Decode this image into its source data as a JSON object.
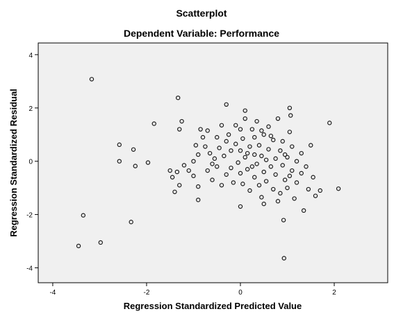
{
  "chart_data": {
    "type": "scatter",
    "title": "Scatterplot",
    "subtitle": "Dependent Variable: Performance",
    "x_label": "Regression Standardized Predicted Value",
    "y_label": "Regression Standardized Residual",
    "color": "#1a1a1a",
    "background": "#f0f0f0",
    "grid": false,
    "xlim": [
      -4.31,
      3.14
    ],
    "ylim": [
      -4.56,
      4.44
    ],
    "xticks": [
      -4,
      -2,
      0,
      2
    ],
    "yticks": [
      -4,
      -2,
      0,
      2,
      4
    ],
    "x": [
      -3.17,
      -3.35,
      -3.45,
      -2.98,
      -2.33,
      -2.58,
      -2.58,
      -2.28,
      -2.24,
      -1.97,
      -1.84,
      -1.33,
      0.93,
      0.92,
      2.09,
      1.9,
      1.05,
      1.07,
      -0.3,
      -1.5,
      -1.45,
      -1.4,
      -1.35,
      -1.3,
      -1.3,
      -1.25,
      -1.2,
      -1.1,
      -1.0,
      -1.0,
      -0.95,
      -0.9,
      -0.9,
      -0.9,
      -0.85,
      -0.8,
      -0.75,
      -0.7,
      -0.7,
      -0.65,
      -0.6,
      -0.55,
      -0.5,
      -0.5,
      -0.45,
      -0.4,
      -0.4,
      -0.35,
      -0.3,
      -0.3,
      -0.25,
      -0.2,
      -0.2,
      -0.15,
      -0.1,
      -0.1,
      -0.05,
      0.0,
      0.0,
      0.0,
      0.0,
      0.05,
      0.05,
      0.1,
      0.1,
      0.1,
      0.15,
      0.2,
      0.2,
      0.25,
      0.3,
      0.3,
      0.3,
      0.35,
      0.35,
      0.4,
      0.4,
      0.45,
      0.45,
      0.5,
      0.5,
      0.55,
      0.55,
      0.6,
      0.6,
      0.65,
      0.7,
      0.7,
      0.75,
      0.75,
      0.8,
      0.85,
      0.85,
      0.9,
      0.9,
      0.95,
      1.0,
      1.0,
      1.05,
      1.1,
      1.1,
      1.15,
      1.2,
      1.2,
      1.3,
      1.3,
      1.35,
      1.4,
      1.45,
      1.5,
      1.55,
      1.6,
      1.7,
      0.45,
      0.65,
      0.25,
      0.15,
      0.5,
      0.8,
      -0.6,
      0.95,
      1.05
    ],
    "values": [
      3.08,
      -2.03,
      -3.18,
      -3.05,
      -2.28,
      0.62,
      0.0,
      0.44,
      -0.18,
      -0.05,
      1.41,
      2.38,
      -3.64,
      -2.21,
      -1.03,
      1.44,
      2.0,
      1.72,
      2.13,
      -0.35,
      -0.6,
      -1.15,
      -0.4,
      -0.9,
      1.2,
      1.5,
      -0.15,
      -0.35,
      -0.55,
      0.0,
      0.6,
      -1.45,
      -0.95,
      0.25,
      1.2,
      0.9,
      0.55,
      -0.35,
      1.15,
      0.3,
      -0.7,
      0.1,
      0.9,
      -0.2,
      0.5,
      -0.9,
      1.35,
      0.2,
      -0.5,
      0.75,
      1.0,
      -0.25,
      0.4,
      -0.8,
      0.65,
      1.35,
      -0.05,
      0.4,
      -0.45,
      -1.7,
      1.2,
      0.85,
      -0.85,
      0.15,
      1.6,
      1.9,
      -0.3,
      0.55,
      -1.1,
      1.2,
      -0.6,
      0.25,
      0.9,
      -0.1,
      1.5,
      -0.9,
      0.6,
      0.2,
      -1.35,
      -0.4,
      1.0,
      0.05,
      -0.75,
      0.45,
      1.3,
      -0.2,
      -1.05,
      0.8,
      0.1,
      -0.5,
      1.6,
      -1.2,
      0.4,
      -0.15,
      0.75,
      -0.7,
      0.15,
      -1.0,
      1.1,
      -0.35,
      0.55,
      -1.4,
      0.0,
      -0.8,
      0.3,
      -0.45,
      -1.85,
      -0.2,
      -1.05,
      0.6,
      -0.6,
      -1.3,
      -1.1,
      1.15,
      0.95,
      -0.2,
      0.3,
      -1.6,
      -1.5,
      -0.1,
      0.25,
      -0.55
    ]
  }
}
